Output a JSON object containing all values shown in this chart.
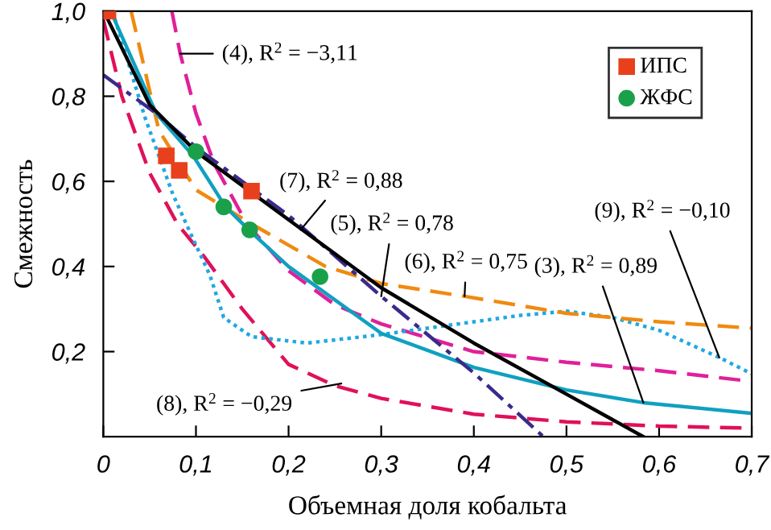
{
  "chart_data": {
    "type": "line",
    "xlabel": "Объемная доля кобальта",
    "ylabel": "Смежность",
    "xlim": [
      0,
      0.7
    ],
    "ylim": [
      0,
      1.0
    ],
    "xticks": [
      0,
      {
        "value": 0.1,
        "label": "0,1"
      },
      {
        "value": 0.2,
        "label": "0,2"
      },
      {
        "value": 0.3,
        "label": "0,3"
      },
      {
        "value": 0.4,
        "label": "0,4"
      },
      {
        "value": 0.5,
        "label": "0,5"
      },
      {
        "value": 0.6,
        "label": "0,6"
      },
      {
        "value": 0.7,
        "label": "0,7"
      }
    ],
    "yticks": [
      {
        "value": 0.2,
        "label": "0,2"
      },
      {
        "value": 0.4,
        "label": "0,4"
      },
      {
        "value": 0.6,
        "label": "0,6"
      },
      {
        "value": 0.8,
        "label": "0,8"
      },
      {
        "value": 1.0,
        "label": "1,0"
      }
    ],
    "grid": false,
    "legend": "top right",
    "series": [
      {
        "color": "#e0105a",
        "line_style": "dashed",
        "marker": "none",
        "x": [
          0,
          0.02,
          0.05,
          0.08,
          0.11,
          0.15,
          0.2,
          0.25,
          0.3,
          0.4,
          0.5,
          0.6,
          0.7
        ],
        "values": [
          0.98,
          0.8,
          0.62,
          0.5,
          0.42,
          0.3,
          0.17,
          0.12,
          0.09,
          0.053,
          0.035,
          0.025,
          0.02
        ]
      },
      {
        "color": "#e0209a",
        "line_style": "dashed",
        "marker": "none",
        "x": [
          0.074,
          0.083,
          0.1,
          0.12,
          0.155,
          0.2,
          0.25,
          0.3,
          0.4,
          0.5,
          0.6,
          0.7
        ],
        "values": [
          1.0,
          0.9,
          0.76,
          0.64,
          0.5,
          0.39,
          0.31,
          0.265,
          0.2,
          0.175,
          0.155,
          0.13
        ]
      },
      {
        "color": "#20a8e0",
        "line_style": "dotted",
        "marker": "none",
        "x": [
          0.01,
          0.045,
          0.075,
          0.1,
          0.115,
          0.13,
          0.16,
          0.22,
          0.3,
          0.36,
          0.45,
          0.5,
          0.55,
          0.6,
          0.665,
          0.7
        ],
        "values": [
          1.0,
          0.75,
          0.57,
          0.45,
          0.38,
          0.28,
          0.235,
          0.22,
          0.24,
          0.258,
          0.285,
          0.295,
          0.28,
          0.25,
          0.186,
          0.148
        ]
      },
      {
        "color": "#f08a10",
        "line_style": "dashed",
        "marker": "none",
        "x": [
          0.03,
          0.06,
          0.1,
          0.16,
          0.24,
          0.3,
          0.39,
          0.5,
          0.6,
          0.7
        ],
        "values": [
          1.0,
          0.72,
          0.58,
          0.5,
          0.4,
          0.36,
          0.33,
          0.29,
          0.27,
          0.255
        ]
      },
      {
        "color": "#10a0c0",
        "line_style": "solid",
        "marker": "none",
        "x": [
          0.01,
          0.057,
          0.097,
          0.132,
          0.16,
          0.2,
          0.3,
          0.4,
          0.5,
          0.583,
          0.7
        ],
        "values": [
          0.99,
          0.76,
          0.66,
          0.54,
          0.48,
          0.4,
          0.243,
          0.163,
          0.11,
          0.08,
          0.055
        ]
      },
      {
        "color": "#3a2a8a",
        "line_style": "dashdot",
        "marker": "none",
        "x": [
          0,
          0.057,
          0.1,
          0.2,
          0.3,
          0.4,
          0.475
        ],
        "values": [
          0.85,
          0.76,
          0.68,
          0.52,
          0.33,
          0.15,
          0.0
        ]
      },
      {
        "color": "#000000",
        "line_style": "solid",
        "marker": "none",
        "x": [
          0.005,
          0.05,
          0.1,
          0.2,
          0.3,
          0.4,
          0.5,
          0.583
        ],
        "values": [
          0.98,
          0.78,
          0.67,
          0.51,
          0.35,
          0.22,
          0.1,
          0.0
        ]
      },
      {
        "type": "scatter",
        "name": "ИПС",
        "color": "#e8401c",
        "marker": "square",
        "x": [
          0.005,
          0.068,
          0.082,
          0.16
        ],
        "values": [
          1.0,
          0.66,
          0.626,
          0.577
        ]
      },
      {
        "type": "scatter",
        "name": "ЖФС",
        "color": "#1aa04a",
        "marker": "circle",
        "x": [
          0.1,
          0.13,
          0.158,
          0.234
        ],
        "values": [
          0.67,
          0.54,
          0.486,
          0.376
        ]
      }
    ],
    "annotations": [
      {
        "text": "(4), R$^{2}$ = −3,11",
        "x": 0.083,
        "y": 0.9
      },
      {
        "text": "(7), R$^{2}$ = 0,88",
        "x": 0.213,
        "y": 0.486
      },
      {
        "text": "(5), R$^{2}$ = 0,78",
        "x": 0.3,
        "y": 0.33
      },
      {
        "text": "(6), R$^{2}$ = 0,75",
        "x": 0.39,
        "y": 0.33
      },
      {
        "text": "(9), R$^{2}$ = −0,10",
        "x": 0.665,
        "y": 0.186
      },
      {
        "text": "(3), R$^{2}$ = 0,89",
        "x": 0.583,
        "y": 0.08
      },
      {
        "text": "(8), R$^{2}$ = −0,29",
        "x": 0.257,
        "y": 0.125
      }
    ]
  }
}
